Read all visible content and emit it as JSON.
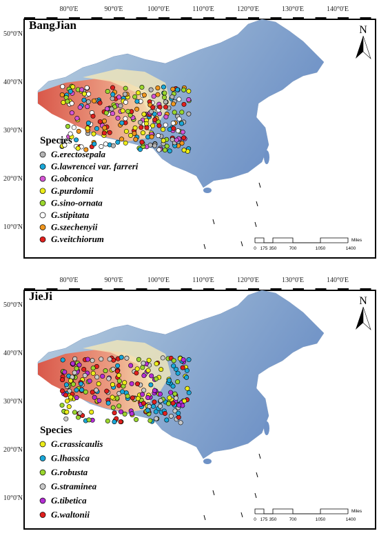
{
  "panels": [
    {
      "title": "BangJian",
      "lon_labels": [
        "80°0'E",
        "90°0'E",
        "100°0'E",
        "110°0'E",
        "120°0'E",
        "130°0'E",
        "140°0'E"
      ],
      "lat_labels": [
        "50°0'N",
        "40°0'N",
        "30°0'N",
        "20°0'N",
        "10°0'N"
      ],
      "north": "N",
      "legend_title": "Species",
      "species": [
        {
          "name": "G.erectosepala",
          "color": "#b4b4b4"
        },
        {
          "name": "G.lawrencei var. farreri",
          "color": "#1aa7d8"
        },
        {
          "name": "G.obconica",
          "color": "#d455d4"
        },
        {
          "name": "G.purdomii",
          "color": "#ecec1a"
        },
        {
          "name": "G.sino-ornata",
          "color": "#9ad62e"
        },
        {
          "name": "G.stipitata",
          "color": "#ffffff"
        },
        {
          "name": "G.szechenyii",
          "color": "#f0961e"
        },
        {
          "name": "G.veitchiorum",
          "color": "#e0201e"
        }
      ],
      "scale_labels": [
        "0",
        "175",
        "350",
        "700",
        "1050",
        "1400"
      ],
      "scale_unit": "Miles"
    },
    {
      "title": "JieJi",
      "lon_labels": [
        "80°0'E",
        "90°0'E",
        "100°0'E",
        "110°0'E",
        "120°0'E",
        "130°0'E",
        "140°0'E"
      ],
      "lat_labels": [
        "50°0'N",
        "40°0'N",
        "30°0'N",
        "20°0'N",
        "10°0'N"
      ],
      "north": "N",
      "legend_title": "Species",
      "species": [
        {
          "name": "G.crassicaulis",
          "color": "#ecec1a"
        },
        {
          "name": "G.lhassica",
          "color": "#1aa7d8"
        },
        {
          "name": "G.robusta",
          "color": "#9ad62e"
        },
        {
          "name": "G.straminea",
          "color": "#c8c8c8"
        },
        {
          "name": "G.tibetica",
          "color": "#b42ed4"
        },
        {
          "name": "G.waltonii",
          "color": "#e0201e"
        }
      ],
      "scale_labels": [
        "0",
        "175",
        "350",
        "700",
        "1050",
        "1400"
      ],
      "scale_unit": "Miles"
    }
  ]
}
